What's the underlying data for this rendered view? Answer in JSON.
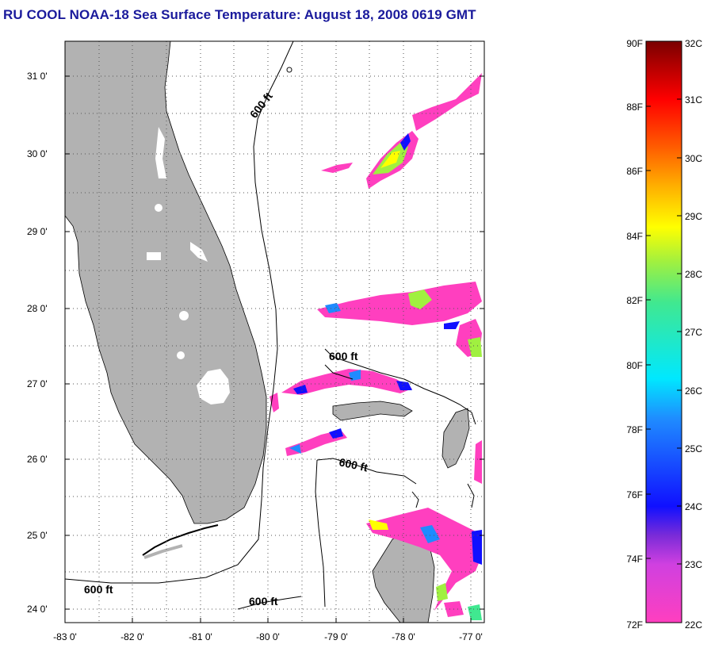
{
  "title": "RU COOL  NOAA-18  Sea Surface Temperature:  August 18, 2008 0619 GMT",
  "map": {
    "lon_ticks": [
      "-83 0'",
      "-82 0'",
      "-81 0'",
      "-80 0'",
      "-79 0'",
      "-78 0'",
      "-77 0'"
    ],
    "lat_ticks": [
      "31 0'",
      "30 0'",
      "29 0'",
      "28 0'",
      "27 0'",
      "26 0'",
      "25 0'",
      "24 0'"
    ],
    "contour_labels": [
      "600 ft",
      "600 ft",
      "600 ft",
      "600 ft",
      "600 ft"
    ],
    "land_color": "#b2b2b2",
    "grid": "dotted"
  },
  "colorbar": {
    "fahrenheit": [
      "90F",
      "88F",
      "86F",
      "84F",
      "82F",
      "80F",
      "78F",
      "76F",
      "74F",
      "72F"
    ],
    "celsius": [
      "32C",
      "31C",
      "30C",
      "29C",
      "28C",
      "27C",
      "26C",
      "25C",
      "24C",
      "23C",
      "22C"
    ]
  }
}
